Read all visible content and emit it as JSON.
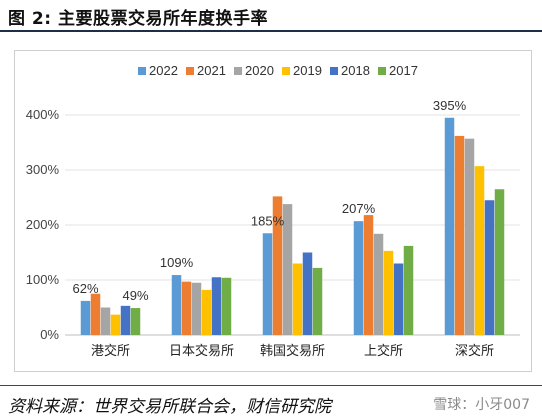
{
  "figure": {
    "title": "图 2:  主要股票交易所年度换手率",
    "source": "资料来源：世界交易所联合会，财信研究院",
    "watermark": "雪球：小牙007"
  },
  "chart_data": {
    "type": "bar",
    "title": "",
    "xlabel": "",
    "ylabel": "",
    "categories": [
      "港交所",
      "日本交易所",
      "韩国交易所",
      "上交所",
      "深交所"
    ],
    "series": [
      {
        "name": "2022",
        "color": "#5b9bd5",
        "values": [
          62,
          109,
          185,
          207,
          395
        ]
      },
      {
        "name": "2021",
        "color": "#ed7d31",
        "values": [
          75,
          97,
          252,
          218,
          362
        ]
      },
      {
        "name": "2020",
        "color": "#a5a5a5",
        "values": [
          50,
          95,
          238,
          184,
          357
        ]
      },
      {
        "name": "2019",
        "color": "#ffc000",
        "values": [
          37,
          82,
          130,
          153,
          307
        ]
      },
      {
        "name": "2018",
        "color": "#4472c4",
        "values": [
          53,
          105,
          150,
          130,
          245
        ]
      },
      {
        "name": "2017",
        "color": "#70ad47",
        "values": [
          49,
          104,
          122,
          162,
          265
        ]
      }
    ],
    "y_ticks": [
      "0%",
      "100%",
      "200%",
      "300%",
      "400%"
    ],
    "ylim": [
      0,
      400
    ],
    "data_labels": [
      {
        "category": 0,
        "series": 0,
        "text": "62%"
      },
      {
        "category": 0,
        "series": 5,
        "text": "49%"
      },
      {
        "category": 1,
        "series": 0,
        "text": "109%"
      },
      {
        "category": 2,
        "series": 0,
        "text": "185%"
      },
      {
        "category": 3,
        "series": 0,
        "text": "207%"
      },
      {
        "category": 4,
        "series": 0,
        "text": "395%"
      }
    ],
    "legend_position": "top",
    "grid": true
  }
}
